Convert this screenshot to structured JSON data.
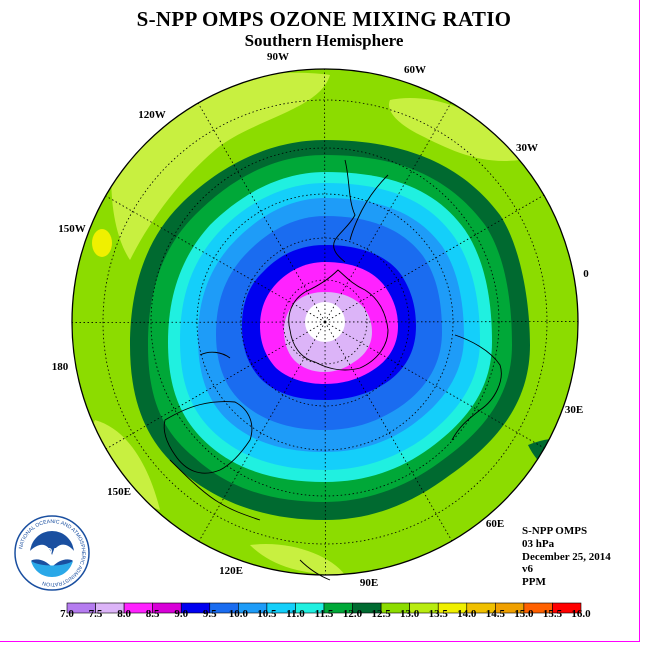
{
  "header": {
    "title": "S-NPP OMPS OZONE MIXING RATIO",
    "subtitle": "Southern Hemisphere"
  },
  "longitude_labels": [
    "90W",
    "60W",
    "30W",
    "0",
    "30E",
    "60E",
    "90E",
    "120E",
    "150E",
    "180",
    "150W",
    "120W"
  ],
  "info": {
    "instrument": "S-NPP OMPS",
    "level": "03 hPa",
    "date": "December 25, 2014",
    "version": "v6",
    "units": "PPM"
  },
  "logo": {
    "text": "NOAA",
    "ring_text": "NATIONAL OCEANIC AND ATMOSPHERIC ADMINISTRATION",
    "ring_text_bottom": "U.S. DEPARTMENT OF COMMERCE"
  },
  "colorbar": {
    "ticks": [
      "7.0",
      "7.5",
      "8.0",
      "8.5",
      "9.0",
      "9.5",
      "10.0",
      "10.5",
      "11.0",
      "11.5",
      "12.0",
      "12.5",
      "13.0",
      "13.5",
      "14.0",
      "14.5",
      "15.0",
      "15.5",
      "16.0"
    ],
    "colors": [
      "#b57cf0",
      "#dcb4f8",
      "#ff22ff",
      "#d800d8",
      "#0000f0",
      "#1a6cf0",
      "#1e9cf8",
      "#14cffa",
      "#20f0e0",
      "#00a838",
      "#006a30",
      "#8cdc00",
      "#b8ec10",
      "#f0f000",
      "#f0c000",
      "#f0a000",
      "#ff6000",
      "#ff0000",
      "#a03000"
    ]
  },
  "map_colors": {
    "ocean_base": "#8cdc00",
    "rings": [
      "#006a30",
      "#00a838",
      "#20f0e0",
      "#14cffa",
      "#1e9cf8",
      "#1a6cf0",
      "#0000f0",
      "#ff22ff",
      "#dcb4f8",
      "#ffffff"
    ],
    "highlights": "#c8f040",
    "yellow_spot": "#f0f000"
  }
}
